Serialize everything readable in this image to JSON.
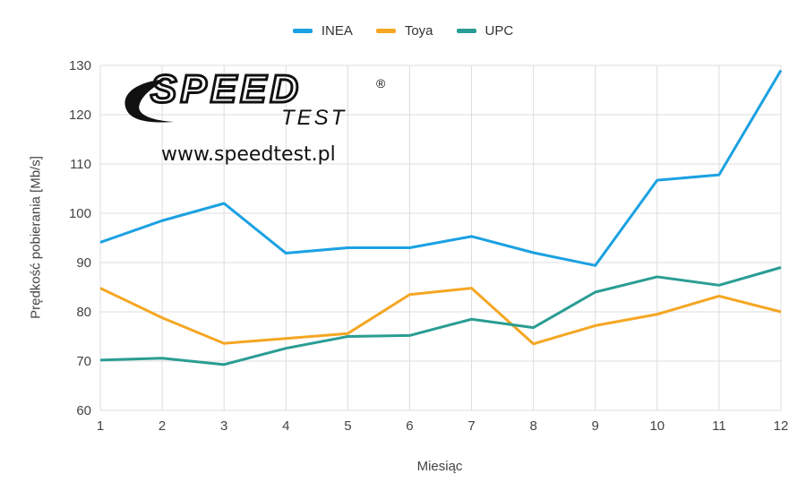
{
  "colors": {
    "INEA": "#1ba1e2",
    "Toya": "#f5a623",
    "UPC": "#2a9d94",
    "grid": "#dddddd"
  },
  "logo": {
    "word": "SPEED",
    "sub": "TEST",
    "registered": "®",
    "url": "www.speedtest.pl"
  },
  "chart_data": {
    "type": "line",
    "xlabel": "Miesiąc",
    "ylabel": "Prędkość pobierania [Mb/s]",
    "x": [
      1,
      2,
      3,
      4,
      5,
      6,
      7,
      8,
      9,
      10,
      11,
      12
    ],
    "ylim": [
      60,
      130
    ],
    "yticks": [
      60,
      70,
      80,
      90,
      100,
      110,
      120,
      130
    ],
    "grid": true,
    "legend": "top-center",
    "series": [
      {
        "name": "INEA",
        "values": [
          94.1,
          98.5,
          102.0,
          91.9,
          93.0,
          93.0,
          95.3,
          92.0,
          89.4,
          106.7,
          107.8,
          129.0
        ]
      },
      {
        "name": "Toya",
        "values": [
          84.8,
          78.8,
          73.6,
          74.6,
          75.6,
          83.5,
          84.8,
          73.5,
          77.2,
          79.5,
          83.2,
          80.0
        ]
      },
      {
        "name": "UPC",
        "values": [
          70.2,
          70.6,
          69.3,
          72.6,
          75.0,
          75.2,
          78.5,
          76.8,
          84.0,
          87.1,
          85.4,
          89.0
        ]
      }
    ]
  }
}
